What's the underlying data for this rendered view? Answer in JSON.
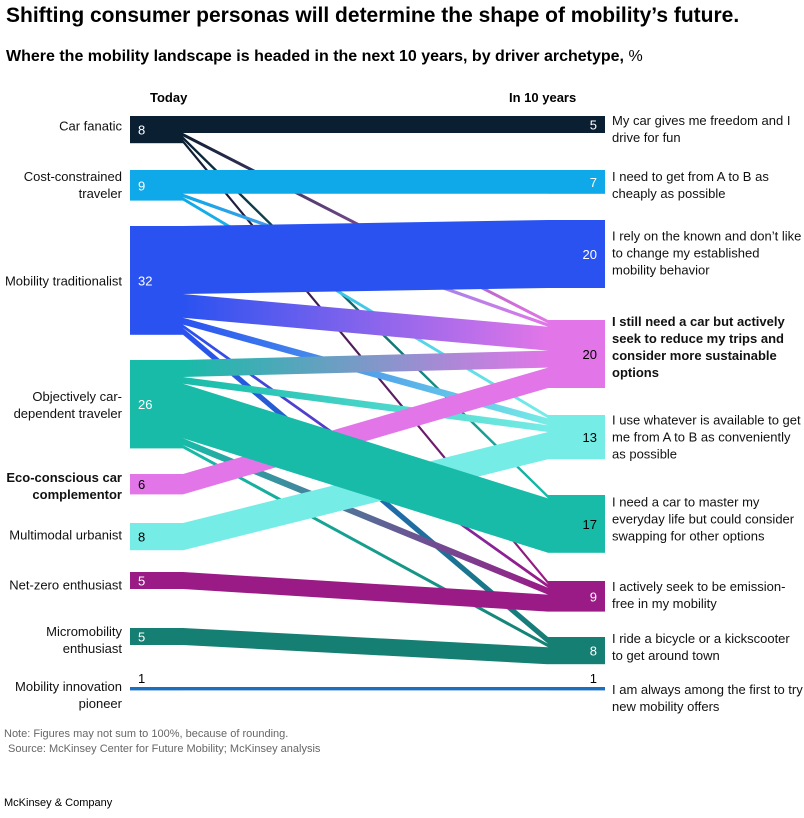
{
  "title": "Shifting consumer personas will determine the shape of mobility’s future.",
  "subtitle": "Where the mobility landscape is headed in the next 10 years, by driver archetype,",
  "subtitle_unit": "%",
  "note": "Note: Figures may not sum to 100%, because of rounding.",
  "source": "Source: McKinsey Center for Future Mobility; McKinsey analysis",
  "brand": "McKinsey & Company",
  "chart_data": {
    "type": "sankey",
    "left_header": "Today",
    "right_header": "In 10 years",
    "left_nodes": [
      {
        "id": "L0",
        "label": "Car fanatic",
        "value": 8,
        "color": "#0b1f33",
        "bold": false
      },
      {
        "id": "L1",
        "label": "Cost-constrained traveler",
        "value": 9,
        "color": "#0fa8e8",
        "bold": false
      },
      {
        "id": "L2",
        "label": "Mobility traditionalist",
        "value": 32,
        "color": "#2a52f0",
        "bold": false
      },
      {
        "id": "L3",
        "label": "Objectively car-dependent traveler",
        "value": 26,
        "color": "#17bba8",
        "bold": false
      },
      {
        "id": "L4",
        "label": "Eco-conscious car complementor",
        "value": 6,
        "color": "#e276e8",
        "bold": true
      },
      {
        "id": "L5",
        "label": "Multimodal urbanist",
        "value": 8,
        "color": "#76ece6",
        "bold": false
      },
      {
        "id": "L6",
        "label": "Net-zero enthusiast",
        "value": 5,
        "color": "#9a1a86",
        "bold": false
      },
      {
        "id": "L7",
        "label": "Micromobility enthusiast",
        "value": 5,
        "color": "#167f73",
        "bold": false
      },
      {
        "id": "L8",
        "label": "Mobility innovation pioneer",
        "value": 1,
        "color": "#1a6fc0",
        "bold": false
      }
    ],
    "right_nodes": [
      {
        "id": "R0",
        "label": "My car gives me freedom and I drive for fun",
        "value": 5,
        "color": "#0b1f33",
        "bold": false
      },
      {
        "id": "R1",
        "label": "I need to get from A to B as cheaply as possible",
        "value": 7,
        "color": "#0fa8e8",
        "bold": false
      },
      {
        "id": "R2",
        "label": "I rely on the known and don’t like to change my established mobility behavior",
        "value": 20,
        "color": "#2a52f0",
        "bold": false
      },
      {
        "id": "R3",
        "label": "I still need a car but actively seek to reduce my trips and consider more sustainable options",
        "value": 20,
        "color": "#e276e8",
        "bold": true
      },
      {
        "id": "R4",
        "label": "I use whatever is available to get me from A to B as conveniently as possible",
        "value": 13,
        "color": "#76ece6",
        "bold": false
      },
      {
        "id": "R5",
        "label": "I need a car to master my everyday life but could consider swapping for other options",
        "value": 17,
        "color": "#17bba8",
        "bold": false
      },
      {
        "id": "R6",
        "label": "I actively seek to be emission-free in my mobility",
        "value": 9,
        "color": "#9a1a86",
        "bold": false
      },
      {
        "id": "R7",
        "label": "I ride a bicycle or a kickscooter to get around town",
        "value": 8,
        "color": "#167f73",
        "bold": false
      },
      {
        "id": "R8",
        "label": "I am always among the first to try new mobility offers",
        "value": 1,
        "color": "#1a6fc0",
        "bold": false
      }
    ],
    "flows": [
      {
        "from": "L0",
        "to": "R0",
        "value": 5
      },
      {
        "from": "L0",
        "to": "R3",
        "value": 1
      },
      {
        "from": "L0",
        "to": "R5",
        "value": 1
      },
      {
        "from": "L0",
        "to": "R6",
        "value": 1
      },
      {
        "from": "L1",
        "to": "R1",
        "value": 7
      },
      {
        "from": "L1",
        "to": "R3",
        "value": 1
      },
      {
        "from": "L1",
        "to": "R4",
        "value": 1
      },
      {
        "from": "L2",
        "to": "R2",
        "value": 20
      },
      {
        "from": "L2",
        "to": "R3",
        "value": 7
      },
      {
        "from": "L2",
        "to": "R4",
        "value": 2
      },
      {
        "from": "L2",
        "to": "R6",
        "value": 1
      },
      {
        "from": "L2",
        "to": "R7",
        "value": 2
      },
      {
        "from": "L3",
        "to": "R3",
        "value": 5
      },
      {
        "from": "L3",
        "to": "R4",
        "value": 2
      },
      {
        "from": "L3",
        "to": "R5",
        "value": 16
      },
      {
        "from": "L3",
        "to": "R6",
        "value": 2
      },
      {
        "from": "L3",
        "to": "R7",
        "value": 1
      },
      {
        "from": "L4",
        "to": "R3",
        "value": 6
      },
      {
        "from": "L5",
        "to": "R4",
        "value": 8
      },
      {
        "from": "L6",
        "to": "R6",
        "value": 5
      },
      {
        "from": "L7",
        "to": "R7",
        "value": 5
      },
      {
        "from": "L8",
        "to": "R8",
        "value": 1
      }
    ]
  }
}
